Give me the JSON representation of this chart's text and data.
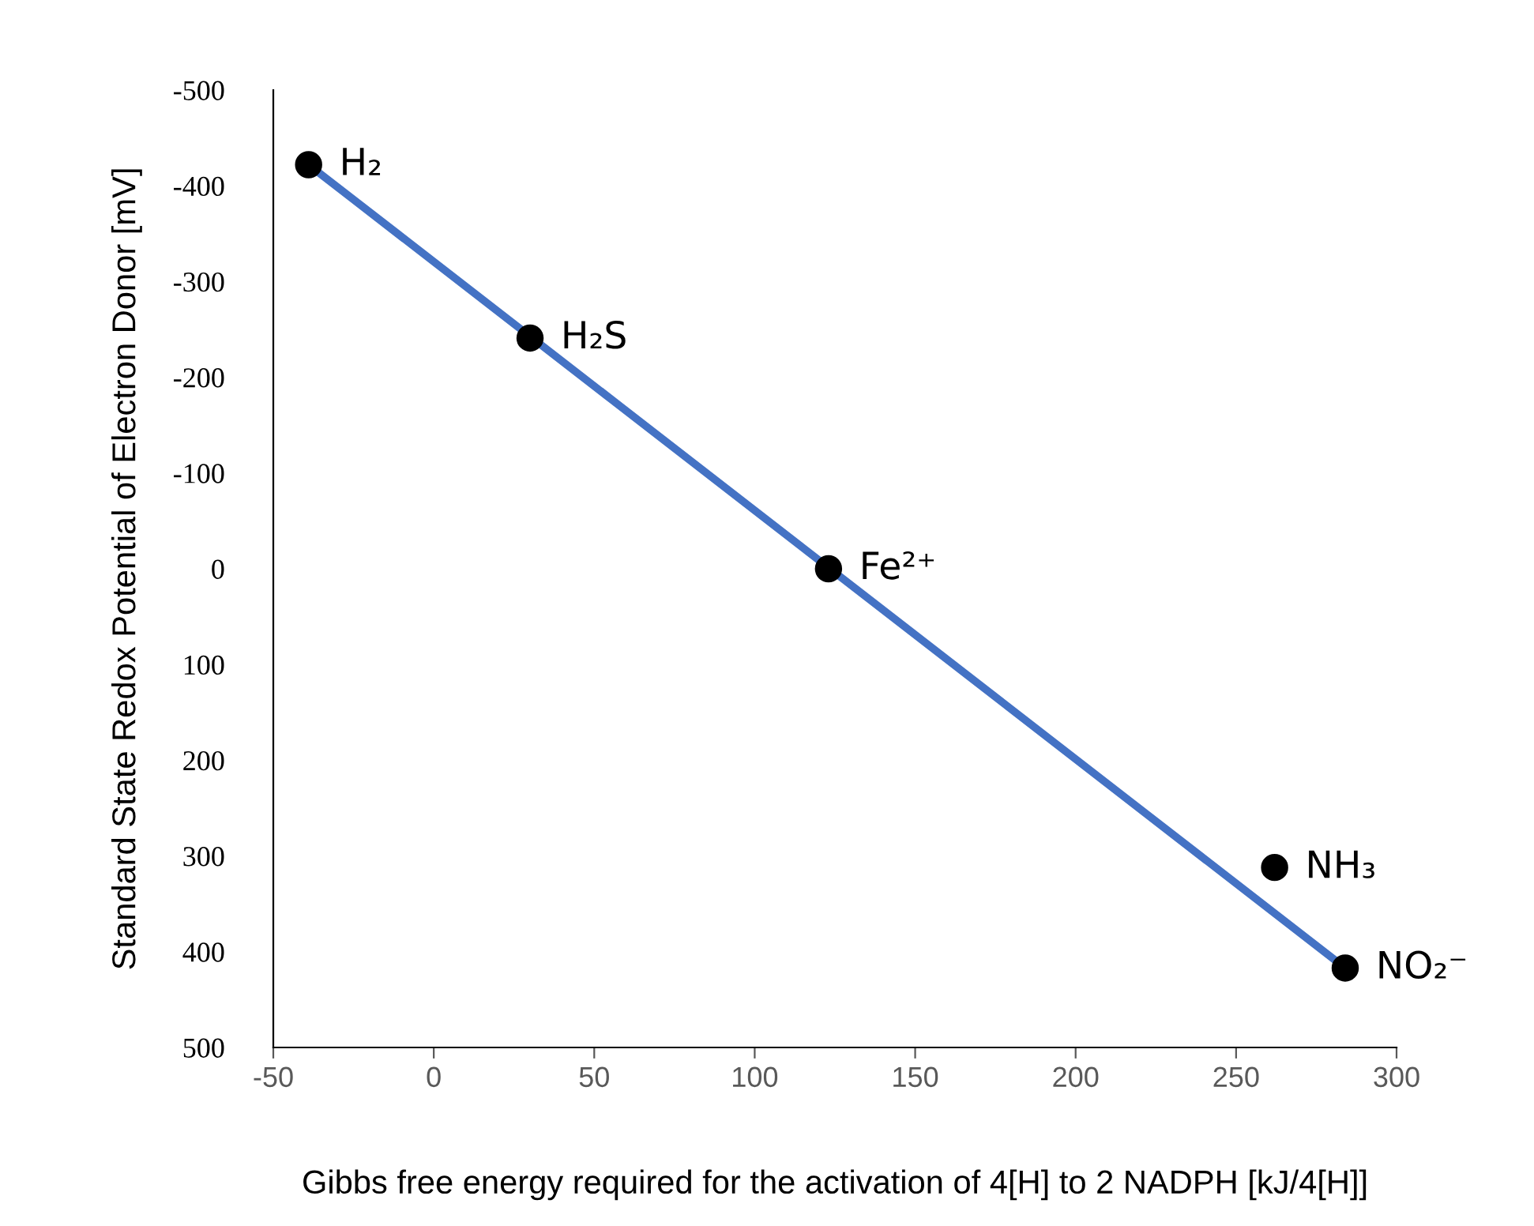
{
  "chart_data": {
    "type": "scatter",
    "xlabel": "Gibbs free energy required for the activation of 4[H] to 2 NADPH [kJ/4[H]]",
    "ylabel": "Standard State Redox Potential of Electron Donor [mV]",
    "x": [
      -39,
      30,
      123,
      262,
      284
    ],
    "series": [
      {
        "type": "line",
        "color": "#4472c4",
        "x": [
          -39,
          284
        ],
        "values": [
          -422,
          417
        ],
        "marker": "none",
        "line_style": "solid"
      },
      {
        "color": "#000000",
        "values": [
          -422,
          -241,
          0,
          312,
          417
        ],
        "marker": "circle"
      }
    ],
    "annotations": [
      {
        "text": "H₂",
        "x": -39,
        "y": -422
      },
      {
        "text": "H₂S",
        "x": 30,
        "y": -241
      },
      {
        "text": "Fe²⁺",
        "x": 123,
        "y": 0
      },
      {
        "text": "NH₃",
        "x": 262,
        "y": 312
      },
      {
        "text": "NO₂⁻",
        "x": 284,
        "y": 417
      }
    ],
    "xlim": [
      -50,
      300
    ],
    "xticks": [
      -50,
      0,
      50,
      100,
      150,
      200,
      250,
      300
    ],
    "ylim": [
      500,
      -500
    ],
    "yticks": [
      -500,
      -400,
      -300,
      -200,
      -100,
      0,
      100,
      200,
      300,
      400,
      500
    ],
    "grid": false,
    "legend": false
  }
}
